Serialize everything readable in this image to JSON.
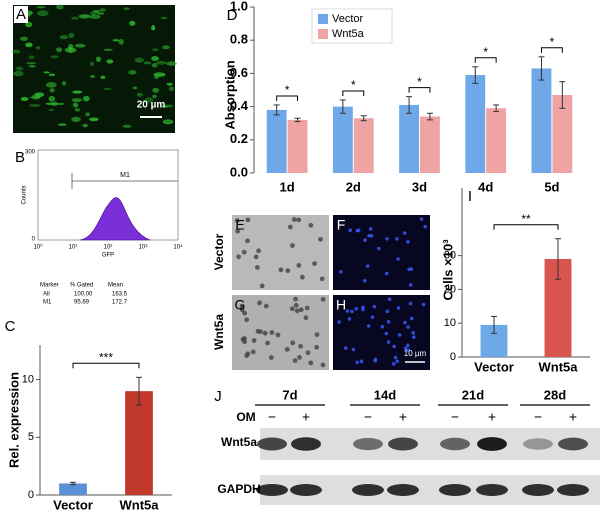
{
  "chart_data": [
    {
      "type": "bar",
      "panel": "C",
      "ylabel": "Rel. expression",
      "categories": [
        "Vector",
        "Wnt5a"
      ],
      "values": [
        1,
        9
      ],
      "errors": [
        0.1,
        1.2
      ],
      "colors": [
        "#5b8fd6",
        "#c0392b"
      ],
      "ylim": [
        0,
        13
      ],
      "yticks": [
        0,
        5,
        10
      ],
      "significance": "***"
    },
    {
      "type": "bar",
      "panel": "D",
      "ylabel": "Absorption",
      "categories": [
        "1d",
        "2d",
        "3d",
        "4d",
        "5d"
      ],
      "series": [
        {
          "name": "Vector",
          "color": "#6fa8e8",
          "values": [
            0.38,
            0.4,
            0.41,
            0.59,
            0.63
          ],
          "errors": [
            0.03,
            0.04,
            0.05,
            0.05,
            0.07
          ]
        },
        {
          "name": "Wnt5a",
          "color": "#f0a3a3",
          "values": [
            0.32,
            0.33,
            0.34,
            0.39,
            0.47
          ],
          "errors": [
            0.01,
            0.015,
            0.02,
            0.02,
            0.08
          ]
        }
      ],
      "ylim": [
        0,
        1
      ],
      "yticks": [
        {
          "value": 0,
          "label": "0.0"
        },
        0.2,
        0.4,
        0.6,
        0.8,
        {
          "value": 1,
          "label": "1.0"
        }
      ],
      "significance": [
        "*",
        "*",
        "*",
        "*",
        "*"
      ],
      "legend": "top"
    },
    {
      "type": "bar",
      "panel": "I",
      "ylabel": "Cells ×10³",
      "categories": [
        "Vector",
        "Wnt5a"
      ],
      "values": [
        9.5,
        29
      ],
      "errors": [
        2.5,
        6
      ],
      "colors": [
        "#6fa8e8",
        "#d9534f"
      ],
      "ylim": [
        0,
        50
      ],
      "yticks": [
        0,
        10,
        20,
        30
      ],
      "significance": "**"
    }
  ],
  "panel_a": {
    "label": "A",
    "scale_bar": "20 µm"
  },
  "panel_b": {
    "label": "B",
    "y_axis_label": "Counts",
    "x_axis_label": "GFP",
    "y_ticks": [
      "300",
      "0"
    ],
    "x_ticks": [
      "10⁰",
      "10¹",
      "10²",
      "10³",
      "10⁴"
    ],
    "marker": "M1",
    "table": {
      "header": [
        "Marker",
        "% Gated",
        "Mean"
      ],
      "rows": [
        [
          "All",
          "100.00",
          "163.5"
        ],
        [
          "M1",
          "95.69",
          "172.7"
        ]
      ]
    }
  },
  "microscopy": {
    "labels": [
      "E",
      "F",
      "G",
      "H"
    ],
    "rows": [
      "Vector",
      "Wnt5a"
    ],
    "scale_bar": "10 µm"
  },
  "panel_j": {
    "label": "J",
    "timepoints": [
      "7d",
      "14d",
      "21d",
      "28d"
    ],
    "treatment": "OM",
    "signs": [
      "−",
      "+",
      "−",
      "+",
      "−",
      "+",
      "−",
      "+"
    ],
    "proteins": [
      "Wnt5a",
      "GAPDH"
    ]
  }
}
